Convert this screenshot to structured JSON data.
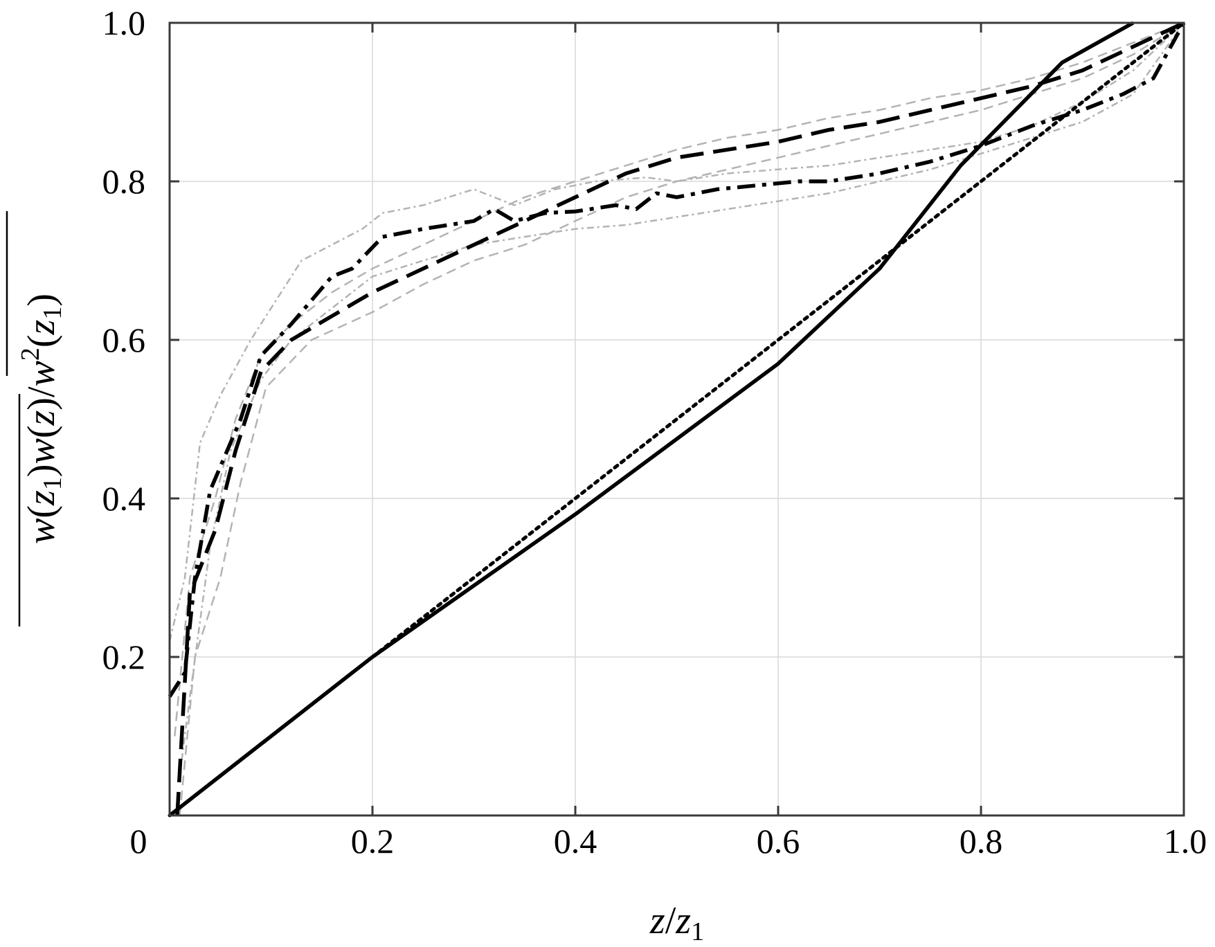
{
  "chart_data": {
    "type": "line",
    "title": "",
    "xlabel": "z/z₁",
    "ylabel": "w(z₁)w(z)/w²(z₁)",
    "xlim": [
      0,
      1
    ],
    "ylim": [
      0,
      1
    ],
    "xticks": [
      "0",
      "0.2",
      "0.4",
      "0.6",
      "0.8",
      "1.0"
    ],
    "yticks": [
      "0.2",
      "0.4",
      "0.6",
      "0.8",
      "1.0"
    ],
    "grid": true,
    "legend": "none",
    "series": [
      {
        "style": "solid",
        "color": "#000000",
        "x": [
          0,
          0.2,
          0.4,
          0.6,
          0.7,
          0.78,
          0.88,
          0.95
        ],
        "y": [
          0,
          0.2,
          0.38,
          0.57,
          0.69,
          0.82,
          0.95,
          1.0
        ]
      },
      {
        "style": "dotted",
        "color": "#000000",
        "x": [
          0,
          0.2,
          0.4,
          0.6,
          0.8,
          1.0
        ],
        "y": [
          0,
          0.2,
          0.4,
          0.6,
          0.8,
          1.0
        ]
      },
      {
        "style": "dashed",
        "color": "#000000",
        "x": [
          0.0075,
          0.02,
          0.045,
          0.065,
          0.09,
          0.12,
          0.16,
          0.2,
          0.25,
          0.3,
          0.35,
          0.4,
          0.45,
          0.5,
          0.55,
          0.6,
          0.65,
          0.7,
          0.75,
          0.8,
          0.85,
          0.9,
          0.95,
          1.0
        ],
        "y": [
          0,
          0.28,
          0.36,
          0.46,
          0.56,
          0.6,
          0.63,
          0.66,
          0.69,
          0.72,
          0.75,
          0.78,
          0.81,
          0.83,
          0.84,
          0.85,
          0.865,
          0.875,
          0.89,
          0.905,
          0.92,
          0.94,
          0.97,
          1.0
        ]
      },
      {
        "style": "dashdot",
        "color": "#000000",
        "x": [
          0,
          0.015,
          0.025,
          0.04,
          0.07,
          0.09,
          0.12,
          0.16,
          0.18,
          0.21,
          0.25,
          0.3,
          0.32,
          0.34,
          0.37,
          0.4,
          0.44,
          0.46,
          0.48,
          0.5,
          0.54,
          0.58,
          0.62,
          0.65,
          0.7,
          0.75,
          0.8,
          0.85,
          0.9,
          0.94,
          0.97,
          1.0
        ],
        "y": [
          0.15,
          0.18,
          0.3,
          0.41,
          0.5,
          0.58,
          0.62,
          0.68,
          0.69,
          0.73,
          0.74,
          0.75,
          0.765,
          0.75,
          0.76,
          0.762,
          0.77,
          0.765,
          0.785,
          0.78,
          0.79,
          0.795,
          0.8,
          0.8,
          0.81,
          0.825,
          0.845,
          0.87,
          0.89,
          0.91,
          0.93,
          1.0
        ]
      },
      {
        "style": "dashed",
        "color": "#b3b3b3",
        "thin": true,
        "x": [
          0.005,
          0.02,
          0.045,
          0.065,
          0.09,
          0.12,
          0.16,
          0.2,
          0.25,
          0.3,
          0.35,
          0.4,
          0.45,
          0.5,
          0.55,
          0.6,
          0.65,
          0.7,
          0.75,
          0.8,
          0.85,
          0.9,
          0.95,
          1.0
        ],
        "y": [
          0.1,
          0.3,
          0.4,
          0.5,
          0.58,
          0.62,
          0.66,
          0.69,
          0.72,
          0.75,
          0.78,
          0.8,
          0.82,
          0.84,
          0.855,
          0.865,
          0.88,
          0.89,
          0.905,
          0.915,
          0.93,
          0.95,
          0.975,
          1.0
        ]
      },
      {
        "style": "dashed",
        "color": "#b3b3b3",
        "thin": true,
        "x": [
          0.01,
          0.025,
          0.05,
          0.07,
          0.095,
          0.14,
          0.2,
          0.25,
          0.3,
          0.35,
          0.4,
          0.45,
          0.5,
          0.55,
          0.6,
          0.65,
          0.7,
          0.75,
          0.8,
          0.85,
          0.9,
          0.95,
          1.0
        ],
        "y": [
          0,
          0.2,
          0.3,
          0.42,
          0.54,
          0.6,
          0.635,
          0.67,
          0.7,
          0.72,
          0.75,
          0.78,
          0.8,
          0.815,
          0.83,
          0.845,
          0.86,
          0.875,
          0.89,
          0.91,
          0.93,
          0.96,
          1.0
        ]
      },
      {
        "style": "dashdot",
        "color": "#b3b3b3",
        "thin": true,
        "x": [
          0,
          0.015,
          0.03,
          0.05,
          0.08,
          0.1,
          0.13,
          0.16,
          0.19,
          0.21,
          0.25,
          0.3,
          0.34,
          0.38,
          0.42,
          0.47,
          0.5,
          0.55,
          0.6,
          0.65,
          0.7,
          0.75,
          0.8,
          0.85,
          0.9,
          0.95,
          1.0
        ],
        "y": [
          0.22,
          0.3,
          0.47,
          0.53,
          0.6,
          0.64,
          0.7,
          0.72,
          0.74,
          0.76,
          0.77,
          0.79,
          0.77,
          0.79,
          0.8,
          0.805,
          0.8,
          0.81,
          0.815,
          0.82,
          0.83,
          0.84,
          0.85,
          0.87,
          0.9,
          0.94,
          1.0
        ]
      },
      {
        "style": "dashdot",
        "color": "#b3b3b3",
        "thin": true,
        "x": [
          0.01,
          0.02,
          0.04,
          0.06,
          0.09,
          0.12,
          0.16,
          0.2,
          0.25,
          0.3,
          0.35,
          0.4,
          0.45,
          0.5,
          0.55,
          0.6,
          0.65,
          0.7,
          0.75,
          0.8,
          0.85,
          0.9,
          0.95,
          1.0
        ],
        "y": [
          0.05,
          0.15,
          0.34,
          0.46,
          0.55,
          0.6,
          0.64,
          0.68,
          0.7,
          0.72,
          0.73,
          0.74,
          0.745,
          0.755,
          0.765,
          0.775,
          0.785,
          0.8,
          0.815,
          0.835,
          0.855,
          0.875,
          0.91,
          1.0
        ]
      }
    ]
  }
}
